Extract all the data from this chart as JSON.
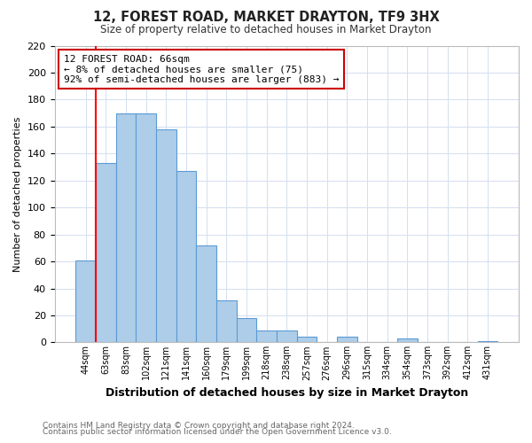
{
  "title": "12, FOREST ROAD, MARKET DRAYTON, TF9 3HX",
  "subtitle": "Size of property relative to detached houses in Market Drayton",
  "xlabel": "Distribution of detached houses by size in Market Drayton",
  "ylabel": "Number of detached properties",
  "bar_labels": [
    "44sqm",
    "63sqm",
    "83sqm",
    "102sqm",
    "121sqm",
    "141sqm",
    "160sqm",
    "179sqm",
    "199sqm",
    "218sqm",
    "238sqm",
    "257sqm",
    "276sqm",
    "296sqm",
    "315sqm",
    "334sqm",
    "354sqm",
    "373sqm",
    "392sqm",
    "412sqm",
    "431sqm"
  ],
  "bar_values": [
    61,
    133,
    170,
    170,
    158,
    127,
    72,
    31,
    18,
    9,
    9,
    4,
    0,
    4,
    0,
    0,
    3,
    0,
    0,
    0,
    1
  ],
  "bar_color": "#aecde8",
  "bar_edge_color": "#5b9bd5",
  "ylim": [
    0,
    220
  ],
  "yticks": [
    0,
    20,
    40,
    60,
    80,
    100,
    120,
    140,
    160,
    180,
    200,
    220
  ],
  "red_line_x": 0.5,
  "annotation_title": "12 FOREST ROAD: 66sqm",
  "annotation_line1": "← 8% of detached houses are smaller (75)",
  "annotation_line2": "92% of semi-detached houses are larger (883) →",
  "annotation_box_color": "#ffffff",
  "annotation_box_edge": "#cc0000",
  "footer1": "Contains HM Land Registry data © Crown copyright and database right 2024.",
  "footer2": "Contains public sector information licensed under the Open Government Licence v3.0.",
  "background_color": "#ffffff",
  "grid_color": "#d4dff0"
}
